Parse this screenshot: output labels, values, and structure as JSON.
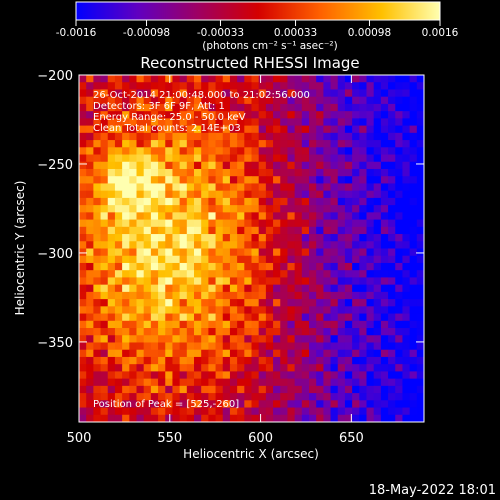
{
  "chart_data": {
    "type": "heatmap",
    "title": "Reconstructed RHESSI Image",
    "xlabel": "Heliocentric X (arcsec)",
    "ylabel": "Heliocentric Y (arcsec)",
    "xlim": [
      500,
      690
    ],
    "ylim": [
      -395,
      -200
    ],
    "x_ticks": [
      "500",
      "550",
      "600",
      "650"
    ],
    "y_ticks": [
      "-200",
      "-250",
      "-300",
      "-350"
    ],
    "colorbar": {
      "range": [
        -0.0016,
        0.0016
      ],
      "tick_labels": [
        "-0.0016",
        "-0.00098",
        "-0.00033",
        "0.00033",
        "0.00098",
        "0.0016"
      ],
      "unit_label": "(photons cm⁻² s⁻¹ asec⁻²)",
      "colors": [
        "#0000ff",
        "#6000c0",
        "#a00060",
        "#d40000",
        "#ff6000",
        "#ffc000",
        "#ffffb0"
      ]
    },
    "annotations": [
      "26-Oct-2014 21:00:48.000 to 21:02:56.000",
      "Detectors: 3F 6F 9F, Att: 1",
      "Energy Range: 25.0 - 50.0 keV",
      "Clean     Total counts: 2.14E+03"
    ],
    "peak_label": "Position of Peak = [525,-260]",
    "peak_position": [
      525,
      -260
    ]
  },
  "footer": {
    "date": "18-May-2022 18:01"
  }
}
